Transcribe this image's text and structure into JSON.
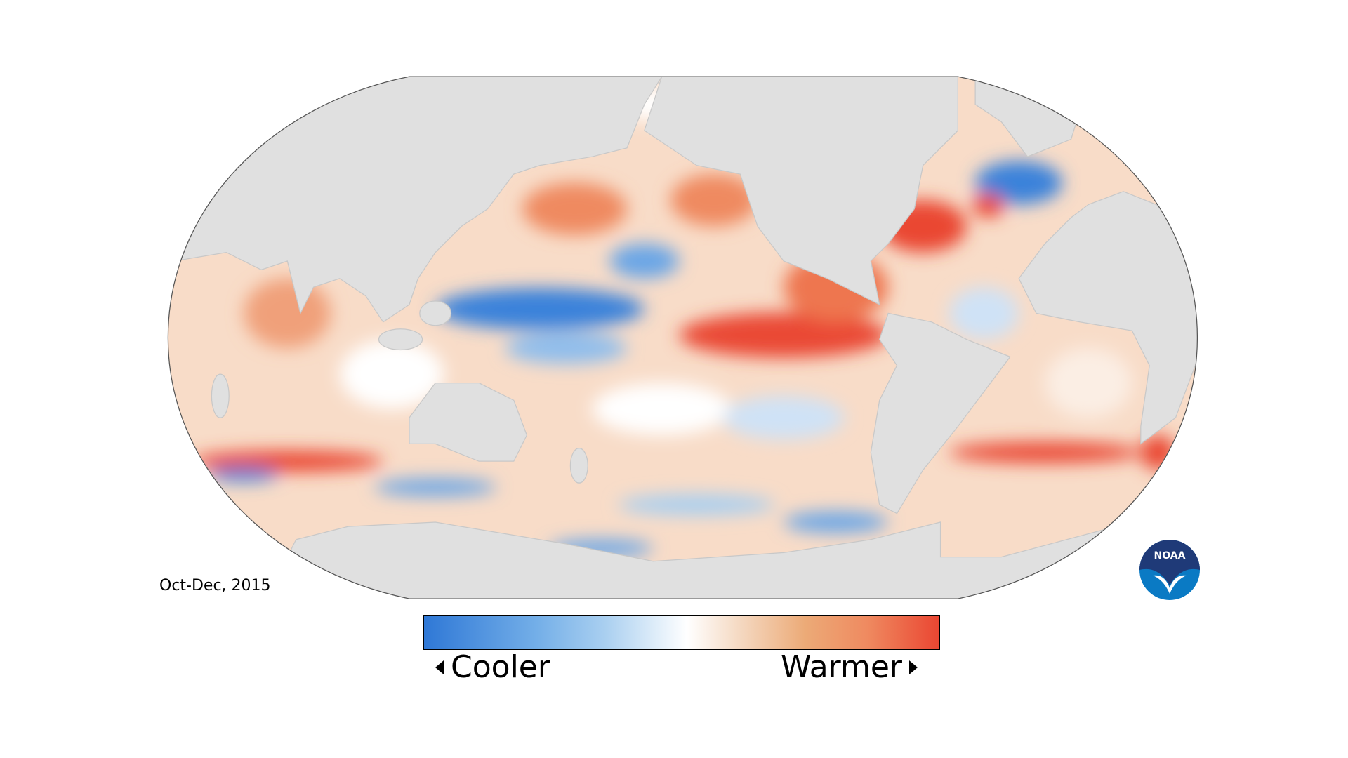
{
  "title_label": "Oct-Dec, 2015",
  "legend": {
    "cool_label": "Cooler",
    "warm_label": "Warmer",
    "colors": [
      "#2f78d6",
      "#74afe8",
      "#ffffff",
      "#ecaa77",
      "#ea4632"
    ]
  },
  "logo": {
    "text": "NOAA",
    "colors": [
      "#1f3a78",
      "#0a7ac4"
    ]
  },
  "land_color": "#e0e0e0"
}
